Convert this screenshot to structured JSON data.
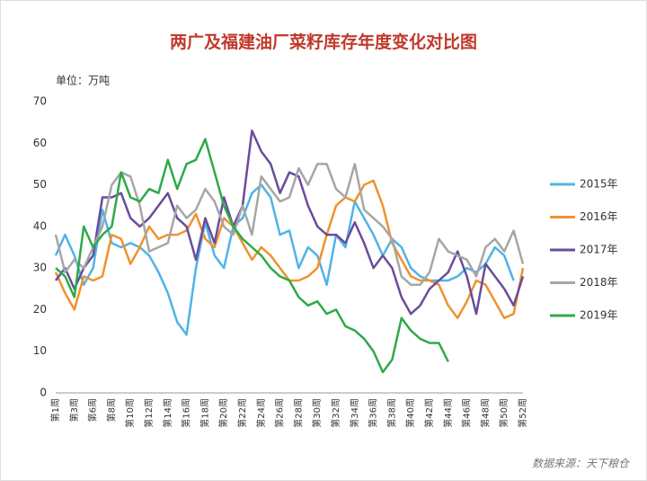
{
  "chart_data": {
    "type": "line",
    "title": "两广及福建油厂菜籽库存年度变化对比图",
    "unit_label": "单位：万吨",
    "source": "数据来源：天下粮仓",
    "categories": [
      "第1周",
      null,
      "第3周",
      null,
      "第6周",
      null,
      "第8周",
      null,
      "第10周",
      null,
      "第12周",
      null,
      "第14周",
      null,
      "第16周",
      null,
      "第18周",
      null,
      "第20周",
      null,
      "第22周",
      null,
      "第24周",
      null,
      "第26周",
      null,
      "第28周",
      null,
      "第30周",
      null,
      "第32周",
      null,
      "第34周",
      null,
      "第36周",
      null,
      "第38周",
      null,
      "第40周",
      null,
      "第42周",
      null,
      "第44周",
      null,
      "第46周",
      null,
      "第48周",
      null,
      "第50周",
      null,
      "第52周"
    ],
    "series": [
      {
        "name": "2015年",
        "color": "#4fb3e8",
        "values": [
          33,
          38,
          33,
          26,
          30,
          44,
          36,
          35,
          36,
          35,
          33,
          29,
          24,
          17,
          14,
          30,
          41,
          33,
          30,
          40,
          42,
          48,
          50,
          47,
          38,
          39,
          30,
          35,
          33,
          26,
          38,
          35,
          46,
          42,
          38,
          33,
          37,
          35,
          30,
          28,
          27,
          27,
          27,
          28,
          30,
          29,
          31,
          35,
          33,
          27,
          null
        ]
      },
      {
        "name": "2016年",
        "color": "#f0922e",
        "values": [
          29,
          24,
          20,
          28,
          27,
          28,
          38,
          37,
          31,
          35,
          40,
          37,
          38,
          38,
          39,
          43,
          37,
          35,
          42,
          40,
          36,
          32,
          35,
          33,
          30,
          27,
          27,
          28,
          30,
          38,
          45,
          47,
          46,
          50,
          51,
          45,
          36,
          32,
          28,
          27,
          27,
          26,
          21,
          18,
          22,
          27,
          26,
          22,
          18,
          19,
          30
        ]
      },
      {
        "name": "2017年",
        "color": "#6a4c9c",
        "values": [
          27,
          30,
          25,
          30,
          33,
          47,
          47,
          48,
          42,
          40,
          42,
          45,
          48,
          42,
          40,
          32,
          42,
          36,
          47,
          40,
          45,
          63,
          58,
          55,
          48,
          53,
          52,
          45,
          40,
          38,
          38,
          36,
          41,
          36,
          30,
          33,
          30,
          23,
          19,
          21,
          25,
          27,
          29,
          34,
          28,
          19,
          31,
          28,
          25,
          21,
          28
        ]
      },
      {
        "name": "2018年",
        "color": "#a6a6a6",
        "values": [
          38,
          29,
          32,
          30,
          35,
          40,
          50,
          53,
          52,
          45,
          34,
          35,
          36,
          45,
          42,
          44,
          49,
          46,
          40,
          38,
          45,
          38,
          52,
          49,
          46,
          47,
          54,
          50,
          55,
          55,
          49,
          47,
          55,
          44,
          42,
          40,
          37,
          28,
          26,
          26,
          29,
          37,
          34,
          33,
          32,
          28,
          35,
          37,
          34,
          39,
          31
        ]
      },
      {
        "name": "2019年",
        "color": "#2eaa48",
        "values": [
          30,
          28,
          23,
          40,
          35,
          38,
          40,
          53,
          47,
          46,
          49,
          48,
          56,
          49,
          55,
          56,
          61,
          53,
          45,
          40,
          37,
          35,
          33,
          30,
          28,
          27,
          23,
          21,
          22,
          19,
          20,
          16,
          15,
          13,
          10,
          5,
          8,
          18,
          15,
          13,
          12,
          12,
          7.5,
          null,
          null,
          null,
          null,
          null,
          null,
          null,
          null
        ]
      }
    ],
    "ylim": [
      0,
      70
    ],
    "yticks": [
      0,
      10,
      20,
      30,
      40,
      50,
      60,
      70
    ],
    "grid": false
  }
}
